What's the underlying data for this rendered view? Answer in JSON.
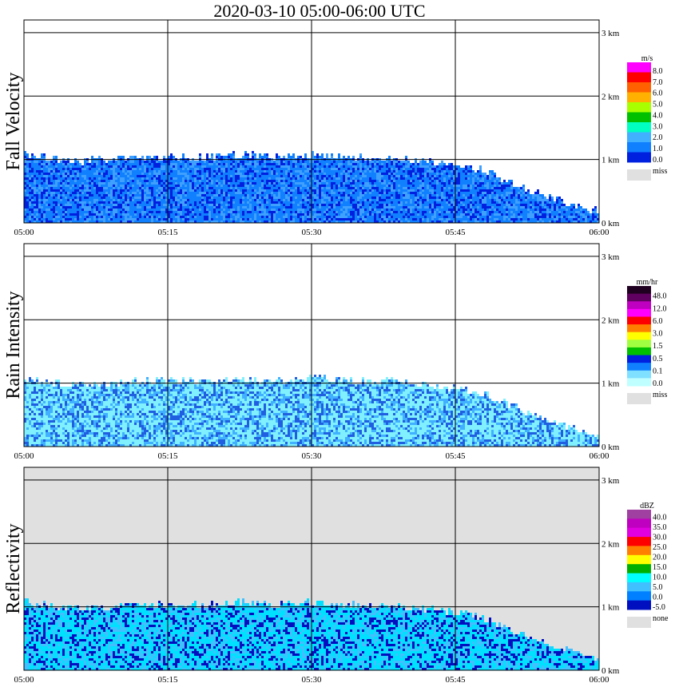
{
  "title": "2020-03-10   05:00-06:00 UTC",
  "chart_data": [
    {
      "type": "heatmap",
      "title": "Fall Velocity",
      "x_ticks": [
        "05:00",
        "05:15",
        "05:30",
        "05:45",
        "06:00"
      ],
      "y_ticks": [
        "0 km",
        "1 km",
        "2 km",
        "3 km"
      ],
      "ylim": [
        0,
        3.2
      ],
      "unit": "m/s",
      "colorbar": {
        "labels": [
          "8.0",
          "7.0",
          "6.0",
          "5.0",
          "4.0",
          "3.0",
          "2.0",
          "1.0",
          "0.0"
        ],
        "colors": [
          "#ff00ff",
          "#ff0000",
          "#ff6000",
          "#ffb000",
          "#a8ff00",
          "#00c000",
          "#00ffc0",
          "#40b0ff",
          "#1080ff",
          "#0020e0"
        ],
        "miss_label": "miss",
        "miss_color": "#e0e0e0"
      },
      "echo_top_km": [
        1.1,
        1.0,
        1.0,
        1.05,
        1.05,
        1.05,
        1.1,
        1.05,
        1.1,
        1.05,
        1.05,
        1.0,
        0.95,
        0.8,
        0.55,
        0.35,
        0.2
      ],
      "background": "#ffffff",
      "fill_colors": [
        "#1080ff",
        "#0020e0",
        "#40a0ff"
      ]
    },
    {
      "type": "heatmap",
      "title": "Rain Intensity",
      "x_ticks": [
        "05:00",
        "05:15",
        "05:30",
        "05:45",
        "06:00"
      ],
      "y_ticks": [
        "0 km",
        "1 km",
        "2 km",
        "3 km"
      ],
      "ylim": [
        0,
        3.2
      ],
      "unit": "mm/hr",
      "colorbar": {
        "labels": [
          "48.0",
          "12.0",
          "6.0",
          "3.0",
          "1.5",
          "0.5",
          "0.1",
          "0.0"
        ],
        "colors": [
          "#200020",
          "#600060",
          "#c000c0",
          "#ff00ff",
          "#ff0000",
          "#ff8000",
          "#ffff00",
          "#a0ff40",
          "#00c000",
          "#0020e0",
          "#1080ff",
          "#80e0ff",
          "#c0ffff"
        ],
        "miss_label": "miss",
        "miss_color": "#e0e0e0"
      },
      "echo_top_km": [
        1.1,
        1.0,
        1.0,
        1.05,
        1.05,
        1.05,
        1.1,
        1.05,
        1.1,
        1.05,
        1.05,
        1.0,
        0.95,
        0.8,
        0.55,
        0.35,
        0.2
      ],
      "background": "#ffffff",
      "fill_colors": [
        "#80f0ff",
        "#40b0ff",
        "#2060e0"
      ]
    },
    {
      "type": "heatmap",
      "title": "Reflectivity",
      "x_ticks": [
        "05:00",
        "05:15",
        "05:30",
        "05:45",
        "06:00"
      ],
      "y_ticks": [
        "0 km",
        "1 km",
        "2 km",
        "3 km"
      ],
      "ylim": [
        0,
        3.2
      ],
      "unit": "dBZ",
      "colorbar": {
        "labels": [
          "40.0",
          "35.0",
          "30.0",
          "25.0",
          "20.0",
          "15.0",
          "10.0",
          "5.0",
          "0.0",
          "-5.0"
        ],
        "colors": [
          "#a040a0",
          "#c000c0",
          "#e000e0",
          "#ff0000",
          "#ff8000",
          "#ffff00",
          "#00b000",
          "#00ffff",
          "#40c0ff",
          "#0080ff",
          "#0010c0"
        ],
        "miss_label": "none",
        "miss_color": "#e0e0e0"
      },
      "echo_top_km": [
        1.1,
        1.0,
        1.0,
        1.05,
        1.05,
        1.05,
        1.1,
        1.05,
        1.1,
        1.05,
        1.05,
        1.0,
        0.95,
        0.8,
        0.55,
        0.35,
        0.2
      ],
      "background": "#e0e0e0",
      "fill_colors": [
        "#00e0ff",
        "#40c0ff",
        "#0010c0"
      ]
    }
  ]
}
